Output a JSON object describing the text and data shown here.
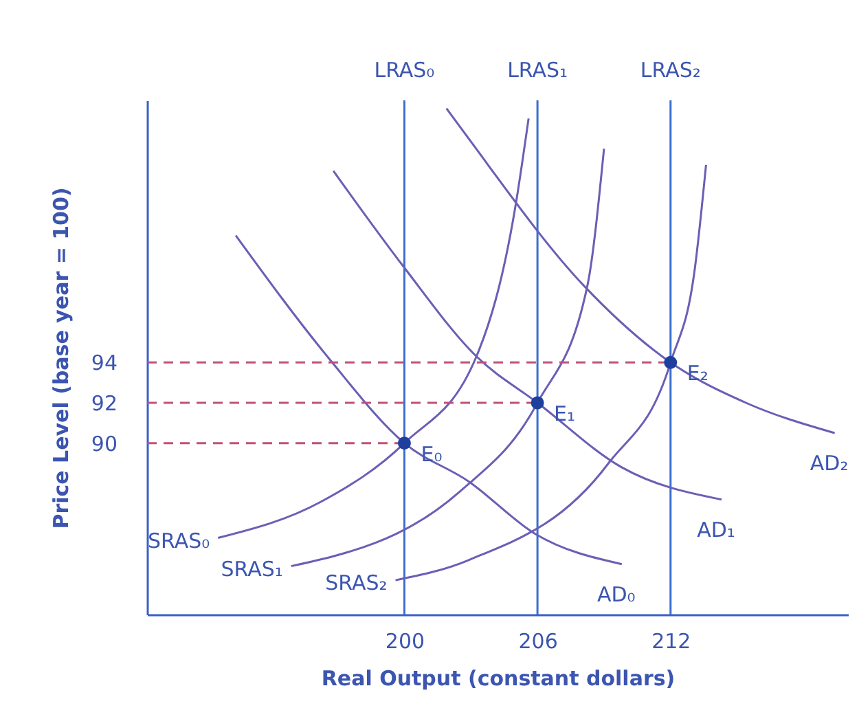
{
  "chart_data": {
    "type": "line",
    "xlabel": "Real Output (constant dollars)",
    "ylabel": "Price Level (base year = 100)",
    "xlim": [
      188.4,
      220
    ],
    "ylim": [
      81.5,
      107
    ],
    "xticks": [
      200,
      206,
      212
    ],
    "yticks": [
      90,
      92,
      94
    ],
    "grid": false,
    "series": [
      {
        "name": "AD₀",
        "color": "#6a5fb5",
        "x": [
          192.4,
          196.6,
          200,
          202.9,
          205.9,
          209.8
        ],
        "values": [
          100.3,
          94.2,
          90,
          88.1,
          85.5,
          84.0
        ]
      },
      {
        "name": "AD₁",
        "color": "#6a5fb5",
        "x": [
          196.8,
          200,
          203.25,
          206,
          209.8,
          214.3
        ],
        "values": [
          103.5,
          98.7,
          94.3,
          92,
          88.8,
          87.2
        ]
      },
      {
        "name": "AD₂",
        "color": "#6a5fb5",
        "x": [
          201.9,
          202.9,
          208.1,
          212,
          215.4,
          219.4
        ],
        "values": [
          106.6,
          105.1,
          97.8,
          94,
          92.0,
          90.5
        ]
      },
      {
        "name": "SRAS₀",
        "color": "#6a5fb5",
        "x": [
          191.6,
          196.25,
          200,
          203.25,
          205,
          205.6
        ],
        "values": [
          85.3,
          87.1,
          90,
          94.3,
          101.7,
          106.1
        ]
      },
      {
        "name": "SRAS₁",
        "color": "#6a5fb5",
        "x": [
          194.9,
          202.5,
          206,
          208.25,
          209
        ],
        "values": [
          83.9,
          87.6,
          92,
          97.8,
          104.6
        ]
      },
      {
        "name": "SRAS₂",
        "color": "#6a5fb5",
        "x": [
          199.6,
          202.9,
          209.2,
          212,
          213.1,
          213.6
        ],
        "values": [
          83.2,
          84.2,
          89.0,
          94,
          98.7,
          103.8
        ]
      },
      {
        "color": "#c0507a",
        "line_style": "dashed",
        "x": [
          188.4,
          200
        ],
        "values": [
          90,
          90
        ]
      },
      {
        "color": "#c0507a",
        "line_style": "dashed",
        "x": [
          188.4,
          206
        ],
        "values": [
          92,
          92
        ]
      },
      {
        "color": "#c0507a",
        "line_style": "dashed",
        "x": [
          188.4,
          212
        ],
        "values": [
          94,
          94
        ]
      },
      {
        "type": "scatter",
        "marker": "circle",
        "color": "#1f3f9f",
        "x": [
          200,
          206,
          212
        ],
        "values": [
          90,
          92,
          94
        ]
      }
    ],
    "ref_lines": [
      {
        "axis": "x",
        "value": 200,
        "label": "LRAS₀",
        "color": "#3a6fd0"
      },
      {
        "axis": "x",
        "value": 206,
        "label": "LRAS₁",
        "color": "#3a6fd0"
      },
      {
        "axis": "x",
        "value": 212,
        "label": "LRAS₂",
        "color": "#3a6fd0"
      }
    ],
    "annotations": [
      {
        "text": "E₀",
        "x": 200,
        "y": 90
      },
      {
        "text": "E₁",
        "x": 206,
        "y": 92
      },
      {
        "text": "E₂",
        "x": 212,
        "y": 94
      }
    ]
  }
}
